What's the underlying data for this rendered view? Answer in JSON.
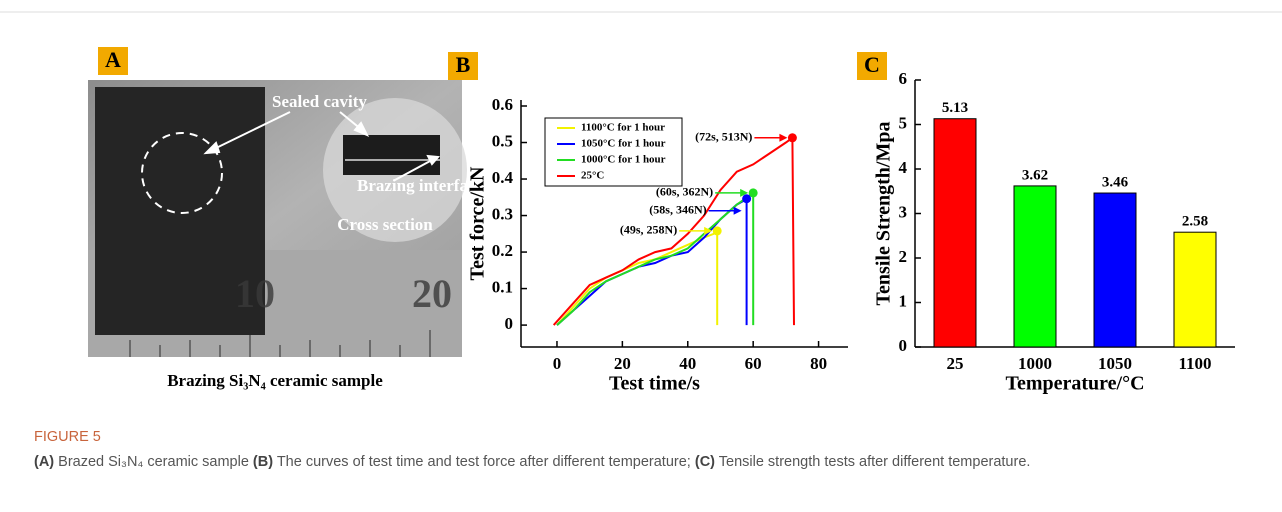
{
  "panel_labels": [
    "A",
    "B",
    "C"
  ],
  "photo": {
    "labels": [
      "Sealed cavity",
      "Brazing interface",
      "Cross section"
    ],
    "ruler_numbers": [
      "10",
      "20"
    ],
    "caption": "Brazing Si₃N₄  ceramic sample"
  },
  "chart_data": [
    {
      "type": "line",
      "xlabel": "Test time/s",
      "ylabel": "Test force/kN",
      "xlim": [
        -11,
        89
      ],
      "xticks": [
        0,
        20,
        40,
        60,
        80
      ],
      "ylim": [
        -0.06,
        0.6
      ],
      "yticks": [
        0,
        0.1,
        0.2,
        0.3,
        0.4,
        0.5,
        0.6
      ],
      "legend": "upper left",
      "series": [
        {
          "name": "1100°C for 1 hour",
          "color": "#f2f200",
          "x": [
            0,
            5,
            10,
            15,
            20,
            25,
            30,
            35,
            40,
            45,
            48,
            49,
            49
          ],
          "values": [
            0,
            0.05,
            0.1,
            0.13,
            0.15,
            0.17,
            0.18,
            0.2,
            0.22,
            0.24,
            0.25,
            0.258,
            0
          ]
        },
        {
          "name": "1050°C for 1 hour",
          "color": "#0000ff",
          "x": [
            0,
            5,
            10,
            15,
            20,
            25,
            30,
            35,
            40,
            45,
            50,
            55,
            57,
            58,
            58
          ],
          "values": [
            0,
            0.04,
            0.08,
            0.12,
            0.14,
            0.16,
            0.17,
            0.19,
            0.2,
            0.24,
            0.29,
            0.33,
            0.34,
            0.346,
            0
          ]
        },
        {
          "name": "1000°C for 1 hour",
          "color": "#22dd22",
          "x": [
            0,
            5,
            10,
            15,
            20,
            25,
            30,
            35,
            40,
            45,
            50,
            55,
            60,
            60
          ],
          "values": [
            0,
            0.04,
            0.09,
            0.12,
            0.14,
            0.16,
            0.18,
            0.19,
            0.21,
            0.25,
            0.29,
            0.33,
            0.362,
            0
          ]
        },
        {
          "name": "25°C",
          "color": "#ff0000",
          "x": [
            -1,
            5,
            10,
            15,
            20,
            25,
            30,
            35,
            40,
            45,
            50,
            55,
            60,
            65,
            70,
            72,
            72.5
          ],
          "values": [
            0,
            0.06,
            0.11,
            0.13,
            0.15,
            0.18,
            0.2,
            0.21,
            0.25,
            0.3,
            0.37,
            0.42,
            0.44,
            0.47,
            0.5,
            0.513,
            0
          ]
        }
      ],
      "annotations": [
        {
          "text": "(72s, 513N)",
          "x": 72,
          "y": 0.513,
          "color": "#ff0000"
        },
        {
          "text": "(60s, 362N)",
          "x": 60,
          "y": 0.362,
          "color": "#22dd22"
        },
        {
          "text": "(58s, 346N)",
          "x": 58,
          "y": 0.346,
          "color": "#0000ff"
        },
        {
          "text": "(49s, 258N)",
          "x": 49,
          "y": 0.258,
          "color": "#f2f200"
        }
      ]
    },
    {
      "type": "bar",
      "xlabel": "Temperature/°C",
      "ylabel": "Tensile Strength/Mpa",
      "categories": [
        "25",
        "1000",
        "1050",
        "1100"
      ],
      "values": [
        5.13,
        3.62,
        3.46,
        2.58
      ],
      "colors": [
        "#ff0000",
        "#00ff00",
        "#0000ff",
        "#ffff00"
      ],
      "ylim": [
        0,
        6
      ],
      "yticks": [
        0,
        1,
        2,
        3,
        4,
        5,
        6
      ]
    }
  ],
  "caption": {
    "label": "FIGURE 5",
    "segments": [
      {
        "text": "(A)",
        "bold": true
      },
      {
        "text": " Brazed Si₃N₄ ceramic sample ",
        "bold": false
      },
      {
        "text": "(B)",
        "bold": true
      },
      {
        "text": " The curves of test time and test force after different temperature; ",
        "bold": false
      },
      {
        "text": "(C)",
        "bold": true
      },
      {
        "text": " Tensile strength tests after different temperature.",
        "bold": false
      }
    ]
  }
}
